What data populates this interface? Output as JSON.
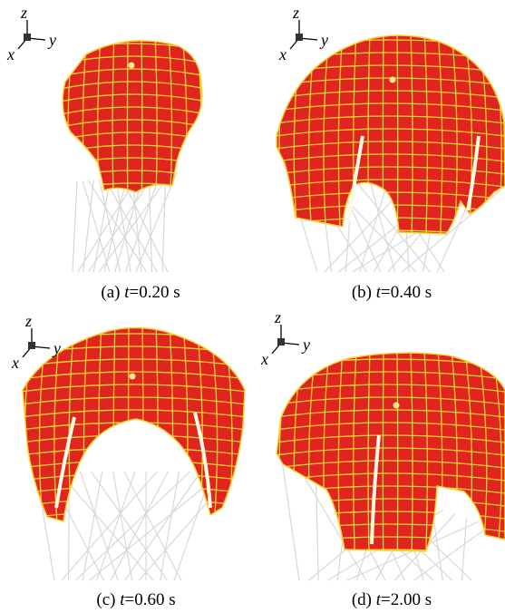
{
  "axis_labels": {
    "z": "z",
    "y": "y",
    "x": "x"
  },
  "panels": [
    {
      "label": "(a)",
      "time_var": "t",
      "time_text": "=0.20 s"
    },
    {
      "label": "(b)",
      "time_var": "t",
      "time_text": "=0.40 s"
    },
    {
      "label": "(c)",
      "time_var": "t",
      "time_text": "=0.60 s"
    },
    {
      "label": "(d)",
      "time_var": "t",
      "time_text": "=2.00 s"
    }
  ]
}
